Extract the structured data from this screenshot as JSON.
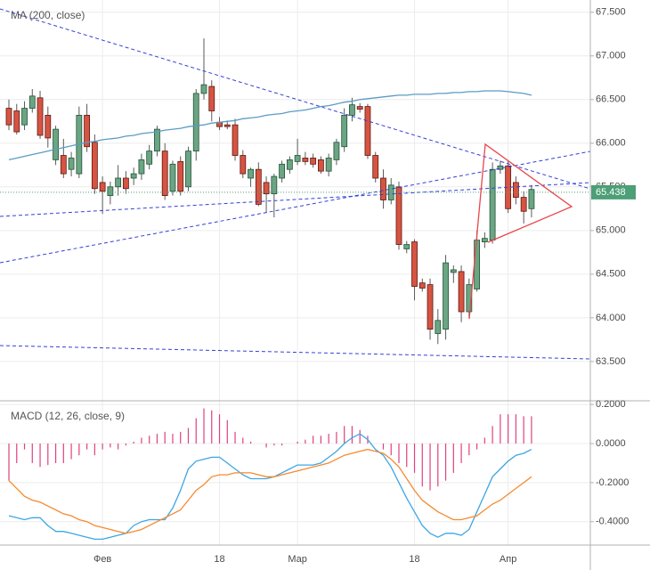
{
  "chart_data": [
    {
      "type": "candlestick",
      "title": "MA (200, close)",
      "ylim": [
        63.05,
        67.64
      ],
      "yticks": [
        {
          "value": 67.5,
          "label": "67.500"
        },
        {
          "value": 67.0,
          "label": "67.000"
        },
        {
          "value": 66.5,
          "label": "66.500"
        },
        {
          "value": 66.0,
          "label": "66.000"
        },
        {
          "value": 65.5,
          "label": "65.500"
        },
        {
          "value": 65.0,
          "label": "65.000"
        },
        {
          "value": 64.5,
          "label": "64.500"
        },
        {
          "value": 64.0,
          "label": "64.000"
        },
        {
          "value": 63.5,
          "label": "63.500"
        }
      ],
      "last_price": 65.438,
      "up_color": "#6ba583",
      "down_color": "#d75442",
      "grid": true,
      "open": [
        66.4,
        66.37,
        66.21,
        66.4,
        66.52,
        66.32,
        65.81,
        65.86,
        65.7,
        65.65,
        66.32,
        66.01,
        65.55,
        65.4,
        65.5,
        65.6,
        65.6,
        65.65,
        65.76,
        65.91,
        65.91,
        65.45,
        65.79,
        65.5,
        65.91,
        66.57,
        66.65,
        66.24,
        66.21,
        66.21,
        65.86,
        65.6,
        65.7,
        65.55,
        65.42,
        65.6,
        65.7,
        65.79,
        65.83,
        65.83,
        65.81,
        65.68,
        65.81,
        65.96,
        66.32,
        66.42,
        66.42,
        65.86,
        65.6,
        65.35,
        65.5,
        64.79,
        64.87,
        64.4,
        64.38,
        63.82,
        63.87,
        64.52,
        64.53,
        64.07,
        64.33,
        64.87,
        64.89,
        65.7,
        65.74,
        65.55,
        65.38,
        65.25
      ],
      "high": [
        66.5,
        66.45,
        66.48,
        66.62,
        66.6,
        66.42,
        66.2,
        66.05,
        65.9,
        66.42,
        66.45,
        66.1,
        65.62,
        65.56,
        65.75,
        65.68,
        65.72,
        65.88,
        65.98,
        66.2,
        66.0,
        65.8,
        65.85,
        65.96,
        66.62,
        67.2,
        66.72,
        66.3,
        66.26,
        66.28,
        65.92,
        65.72,
        65.78,
        65.62,
        65.65,
        65.8,
        65.85,
        66.05,
        65.9,
        65.88,
        65.85,
        65.88,
        66.05,
        66.4,
        66.52,
        66.46,
        66.45,
        65.9,
        65.7,
        65.6,
        65.56,
        64.88,
        64.9,
        64.45,
        64.45,
        64.1,
        64.72,
        64.6,
        64.6,
        64.45,
        65.0,
        64.98,
        65.78,
        65.8,
        65.8,
        65.62,
        65.45,
        65.52
      ],
      "low": [
        66.15,
        66.1,
        66.15,
        66.35,
        66.05,
        65.95,
        65.75,
        65.6,
        65.62,
        65.6,
        65.9,
        65.42,
        65.19,
        65.3,
        65.4,
        65.42,
        65.52,
        65.58,
        65.7,
        65.85,
        65.35,
        65.4,
        65.4,
        65.45,
        65.8,
        66.5,
        66.25,
        66.15,
        66.16,
        65.8,
        65.6,
        65.5,
        65.28,
        65.2,
        65.15,
        65.55,
        65.65,
        65.75,
        65.75,
        65.72,
        65.65,
        65.62,
        65.75,
        65.9,
        66.25,
        66.35,
        65.82,
        65.55,
        65.25,
        65.3,
        64.78,
        64.74,
        64.2,
        64.3,
        63.75,
        63.7,
        63.75,
        64.4,
        63.95,
        64.0,
        64.3,
        64.8,
        64.85,
        65.65,
        65.2,
        65.3,
        65.08,
        65.15
      ],
      "close": [
        66.21,
        66.13,
        66.4,
        66.54,
        66.09,
        66.06,
        66.16,
        65.65,
        65.83,
        66.32,
        65.96,
        65.48,
        65.45,
        65.5,
        65.6,
        65.48,
        65.65,
        65.81,
        65.91,
        66.16,
        65.4,
        65.76,
        65.45,
        65.91,
        66.57,
        66.67,
        66.37,
        66.19,
        66.19,
        65.86,
        65.65,
        65.7,
        65.3,
        65.42,
        65.62,
        65.76,
        65.81,
        65.86,
        65.79,
        65.76,
        65.68,
        65.83,
        66.01,
        66.32,
        66.44,
        66.39,
        65.86,
        65.6,
        65.35,
        65.52,
        64.84,
        64.84,
        64.36,
        64.34,
        63.87,
        63.97,
        64.63,
        64.55,
        64.07,
        64.38,
        64.89,
        64.91,
        65.7,
        65.74,
        65.25,
        65.38,
        65.22,
        65.47
      ],
      "series": [
        {
          "name": "MA (200, close)",
          "color": "#5b9cc2",
          "values": [
            65.81,
            65.83,
            65.85,
            65.87,
            65.89,
            65.91,
            65.93,
            65.95,
            65.97,
            65.99,
            66.01,
            66.02,
            66.04,
            66.05,
            66.06,
            66.08,
            66.09,
            66.11,
            66.12,
            66.13,
            66.15,
            66.16,
            66.17,
            66.19,
            66.2,
            66.21,
            66.23,
            66.24,
            66.25,
            66.26,
            66.28,
            66.29,
            66.3,
            66.32,
            66.33,
            66.34,
            66.36,
            66.37,
            66.38,
            66.4,
            66.42,
            66.43,
            66.45,
            66.47,
            66.48,
            66.5,
            66.51,
            66.52,
            66.53,
            66.54,
            66.55,
            66.55,
            66.56,
            66.56,
            66.56,
            66.57,
            66.57,
            66.58,
            66.58,
            66.59,
            66.59,
            66.6,
            66.6,
            66.6,
            66.59,
            66.58,
            66.57,
            66.55
          ]
        }
      ]
    },
    {
      "type": "macd",
      "title": "MACD (12, 26, close, 9)",
      "ylim": [
        -0.52,
        0.21
      ],
      "yticks": [
        {
          "value": 0.2,
          "label": "0.2000"
        },
        {
          "value": 0.0,
          "label": "0.0000"
        },
        {
          "value": -0.2,
          "label": "-0.2000"
        },
        {
          "value": -0.4,
          "label": "-0.4000"
        }
      ],
      "categories": [
        null,
        null,
        null,
        null,
        null,
        null,
        null,
        null,
        null,
        null,
        null,
        null,
        "Фев",
        null,
        null,
        null,
        null,
        null,
        null,
        null,
        null,
        null,
        null,
        null,
        null,
        null,
        null,
        "18",
        null,
        null,
        null,
        null,
        null,
        null,
        null,
        null,
        null,
        "Мар",
        null,
        null,
        null,
        null,
        null,
        null,
        null,
        null,
        null,
        null,
        null,
        null,
        null,
        null,
        "18",
        null,
        null,
        null,
        null,
        null,
        null,
        null,
        null,
        null,
        null,
        null,
        "Апр",
        null,
        null,
        null
      ],
      "histogram": {
        "color": "#e0407e",
        "values": [
          -0.19,
          -0.1,
          -0.03,
          -0.1,
          -0.12,
          -0.11,
          -0.1,
          -0.1,
          -0.08,
          -0.06,
          -0.03,
          -0.06,
          -0.03,
          -0.02,
          -0.03,
          -0.01,
          0.01,
          0.03,
          0.04,
          0.05,
          0.06,
          0.05,
          0.06,
          0.08,
          0.13,
          0.18,
          0.17,
          0.15,
          0.12,
          0.06,
          0.03,
          0.01,
          0.0,
          -0.02,
          -0.01,
          -0.01,
          0.0,
          0.01,
          0.02,
          0.04,
          0.04,
          0.05,
          0.06,
          0.09,
          0.09,
          0.07,
          0.04,
          0.0,
          -0.03,
          -0.06,
          -0.1,
          -0.12,
          -0.15,
          -0.22,
          -0.24,
          -0.22,
          -0.19,
          -0.15,
          -0.1,
          -0.06,
          -0.03,
          0.03,
          0.09,
          0.15,
          0.15,
          0.15,
          0.14,
          0.14
        ]
      },
      "series": [
        {
          "color": "#3da6e4",
          "values": [
            -0.37,
            -0.38,
            -0.39,
            -0.38,
            -0.38,
            -0.42,
            -0.45,
            -0.45,
            -0.46,
            -0.47,
            -0.48,
            -0.49,
            -0.49,
            -0.48,
            -0.47,
            -0.46,
            -0.42,
            -0.4,
            -0.39,
            -0.39,
            -0.39,
            -0.33,
            -0.24,
            -0.13,
            -0.09,
            -0.08,
            -0.07,
            -0.07,
            -0.1,
            -0.13,
            -0.16,
            -0.18,
            -0.18,
            -0.18,
            -0.17,
            -0.15,
            -0.13,
            -0.11,
            -0.11,
            -0.11,
            -0.1,
            -0.07,
            -0.04,
            0.0,
            0.03,
            0.05,
            0.02,
            -0.03,
            -0.06,
            -0.12,
            -0.2,
            -0.28,
            -0.35,
            -0.42,
            -0.46,
            -0.48,
            -0.46,
            -0.46,
            -0.47,
            -0.44,
            -0.35,
            -0.26,
            -0.17,
            -0.13,
            -0.09,
            -0.06,
            -0.05,
            -0.03
          ]
        },
        {
          "color": "#f58a2f",
          "values": [
            -0.19,
            -0.23,
            -0.27,
            -0.29,
            -0.3,
            -0.32,
            -0.34,
            -0.36,
            -0.37,
            -0.39,
            -0.4,
            -0.42,
            -0.43,
            -0.44,
            -0.45,
            -0.46,
            -0.45,
            -0.44,
            -0.42,
            -0.4,
            -0.38,
            -0.36,
            -0.34,
            -0.29,
            -0.24,
            -0.21,
            -0.17,
            -0.16,
            -0.16,
            -0.15,
            -0.15,
            -0.15,
            -0.16,
            -0.17,
            -0.17,
            -0.16,
            -0.15,
            -0.14,
            -0.13,
            -0.12,
            -0.11,
            -0.1,
            -0.08,
            -0.06,
            -0.05,
            -0.04,
            -0.03,
            -0.04,
            -0.05,
            -0.08,
            -0.12,
            -0.18,
            -0.24,
            -0.29,
            -0.32,
            -0.35,
            -0.37,
            -0.39,
            -0.39,
            -0.38,
            -0.37,
            -0.34,
            -0.31,
            -0.29,
            -0.26,
            -0.23,
            -0.2,
            -0.17
          ]
        }
      ]
    }
  ]
}
